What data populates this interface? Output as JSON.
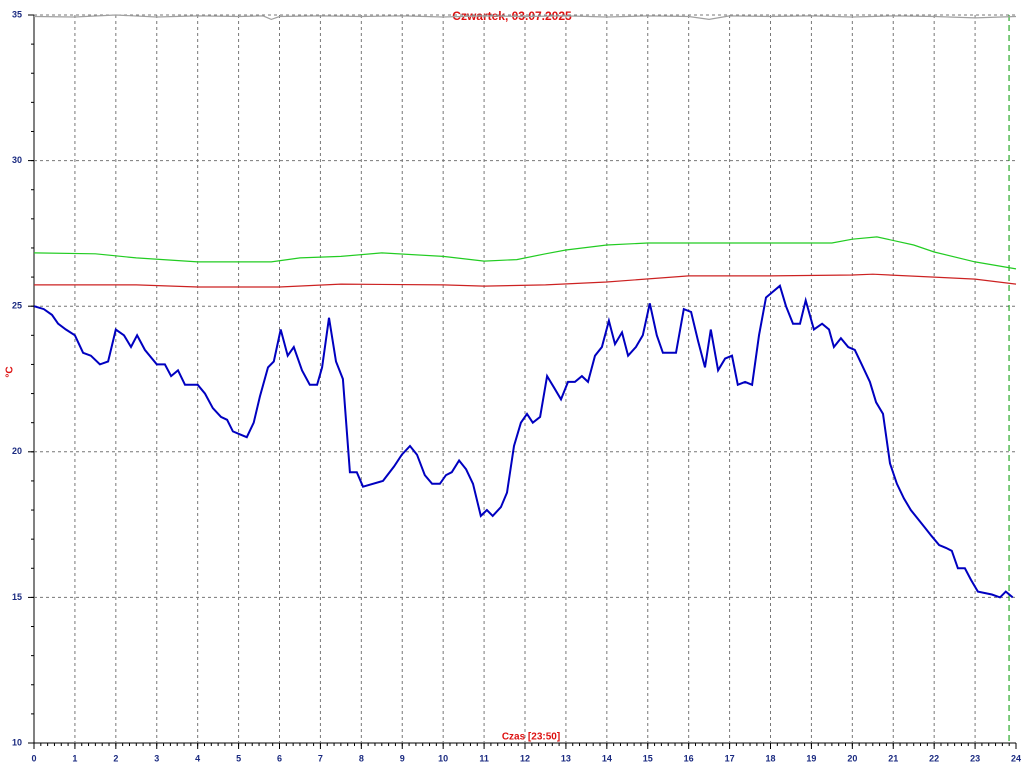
{
  "chart_data": {
    "type": "line",
    "title": "Czwartek, 03.07.2025",
    "xlabel": "Czas [23:50]",
    "ylabel": "°C",
    "xlim": [
      0,
      24
    ],
    "ylim": [
      10,
      35
    ],
    "xticks": [
      0,
      1,
      2,
      3,
      4,
      5,
      6,
      7,
      8,
      9,
      10,
      11,
      12,
      13,
      14,
      15,
      16,
      17,
      18,
      19,
      20,
      21,
      22,
      23,
      24
    ],
    "yticks": [
      10,
      15,
      20,
      25,
      30,
      35
    ],
    "grid": true,
    "marker_x": 23.83,
    "marker_color": "#009900",
    "series": [
      {
        "color": "#0000c0",
        "x": [
          0,
          0.24,
          0.44,
          0.59,
          0.78,
          1.0,
          1.2,
          1.39,
          1.61,
          1.81,
          2.0,
          2.2,
          2.37,
          2.52,
          2.71,
          3.0,
          3.2,
          3.35,
          3.52,
          3.69,
          4.0,
          4.18,
          4.37,
          4.57,
          4.72,
          4.86,
          5.03,
          5.2,
          5.37,
          5.52,
          5.72,
          5.86,
          6.03,
          6.2,
          6.35,
          6.55,
          6.74,
          6.92,
          7.04,
          7.21,
          7.38,
          7.55,
          7.72,
          7.89,
          8.04,
          8.53,
          8.8,
          8.99,
          9.19,
          9.36,
          9.55,
          9.73,
          9.92,
          10.07,
          10.21,
          10.39,
          10.56,
          10.73,
          10.92,
          11.07,
          11.21,
          11.41,
          11.56,
          11.73,
          11.9,
          12.05,
          12.19,
          12.37,
          12.54,
          12.71,
          12.88,
          13.05,
          13.22,
          13.39,
          13.54,
          13.71,
          13.88,
          14.05,
          14.2,
          14.37,
          14.52,
          14.71,
          14.88,
          15.05,
          15.22,
          15.37,
          15.69,
          15.88,
          16.06,
          16.23,
          16.4,
          16.54,
          16.72,
          16.89,
          17.06,
          17.2,
          17.38,
          17.55,
          17.72,
          17.89,
          18.06,
          18.23,
          18.38,
          18.55,
          18.72,
          18.86,
          19.06,
          19.26,
          19.43,
          19.55,
          19.72,
          19.9,
          20.06,
          20.23,
          20.43,
          20.58,
          20.75,
          20.92,
          21.09,
          21.26,
          21.43,
          21.6,
          21.77,
          21.94,
          22.12,
          22.29,
          22.43,
          22.58,
          22.75,
          22.9,
          23.07,
          23.41,
          23.61,
          23.75,
          23.92
        ],
        "values": [
          25.0,
          24.9,
          24.7,
          24.4,
          24.2,
          24.0,
          23.4,
          23.3,
          23.0,
          23.1,
          24.2,
          24.0,
          23.6,
          24.0,
          23.5,
          23.0,
          23.0,
          22.6,
          22.8,
          22.3,
          22.3,
          22.0,
          21.5,
          21.2,
          21.1,
          20.7,
          20.6,
          20.5,
          21.0,
          21.9,
          22.9,
          23.1,
          24.2,
          23.3,
          23.6,
          22.8,
          22.3,
          22.3,
          22.9,
          24.6,
          23.1,
          22.5,
          19.3,
          19.3,
          18.8,
          19.0,
          19.5,
          19.9,
          20.2,
          19.9,
          19.2,
          18.9,
          18.9,
          19.2,
          19.3,
          19.7,
          19.4,
          18.9,
          17.8,
          18.0,
          17.8,
          18.1,
          18.6,
          20.2,
          21.0,
          21.3,
          21.0,
          21.2,
          22.6,
          22.2,
          21.8,
          22.4,
          22.4,
          22.6,
          22.4,
          23.3,
          23.6,
          24.5,
          23.7,
          24.1,
          23.3,
          23.6,
          24.0,
          25.1,
          24.0,
          23.4,
          23.4,
          24.9,
          24.8,
          23.8,
          22.9,
          24.2,
          22.8,
          23.2,
          23.3,
          22.3,
          22.4,
          22.3,
          24.0,
          25.3,
          25.5,
          25.7,
          25.0,
          24.4,
          24.4,
          25.2,
          24.2,
          24.4,
          24.2,
          23.6,
          23.9,
          23.6,
          23.5,
          23.0,
          22.4,
          21.7,
          21.3,
          19.6,
          18.9,
          18.4,
          18.0,
          17.7,
          17.4,
          17.1,
          16.8,
          16.7,
          16.6,
          16.0,
          16.0,
          15.6,
          15.2,
          15.1,
          15.0,
          15.2,
          15.0
        ]
      },
      {
        "color": "#22cc22",
        "x": [
          0,
          1.5,
          2.5,
          4,
          5.8,
          6.5,
          7.5,
          8.5,
          10,
          11,
          11.8,
          12.5,
          13,
          14,
          15,
          17,
          19.5,
          20,
          20.6,
          21.5,
          22,
          23,
          24
        ],
        "values": [
          26.83,
          26.8,
          26.66,
          26.52,
          26.52,
          26.66,
          26.71,
          26.83,
          26.71,
          26.55,
          26.6,
          26.8,
          26.93,
          27.1,
          27.17,
          27.17,
          27.17,
          27.3,
          27.38,
          27.1,
          26.86,
          26.52,
          26.28
        ]
      },
      {
        "color": "#cc2222",
        "x": [
          0,
          2.5,
          4,
          6,
          7.5,
          10,
          11,
          12.5,
          14,
          16,
          18,
          20,
          20.5,
          22,
          23,
          24
        ],
        "values": [
          25.73,
          25.73,
          25.66,
          25.66,
          25.76,
          25.73,
          25.69,
          25.73,
          25.83,
          26.04,
          26.04,
          26.07,
          26.1,
          26.0,
          25.93,
          25.76
        ]
      },
      {
        "color": "#a0a0a0",
        "x": [
          0,
          1,
          2,
          3,
          4,
          5,
          5.6,
          5.8,
          6,
          7,
          8,
          9,
          10,
          11,
          12,
          13,
          14,
          15,
          16,
          16.5,
          17,
          18,
          19,
          20,
          21,
          22,
          23,
          24
        ],
        "values": [
          34.95,
          34.93,
          35.0,
          34.93,
          34.97,
          34.95,
          34.97,
          34.85,
          34.95,
          34.97,
          34.95,
          34.97,
          34.93,
          34.97,
          34.95,
          34.97,
          34.93,
          34.97,
          34.95,
          34.85,
          34.97,
          34.95,
          34.97,
          34.93,
          34.97,
          34.95,
          34.9,
          34.95
        ]
      }
    ]
  }
}
